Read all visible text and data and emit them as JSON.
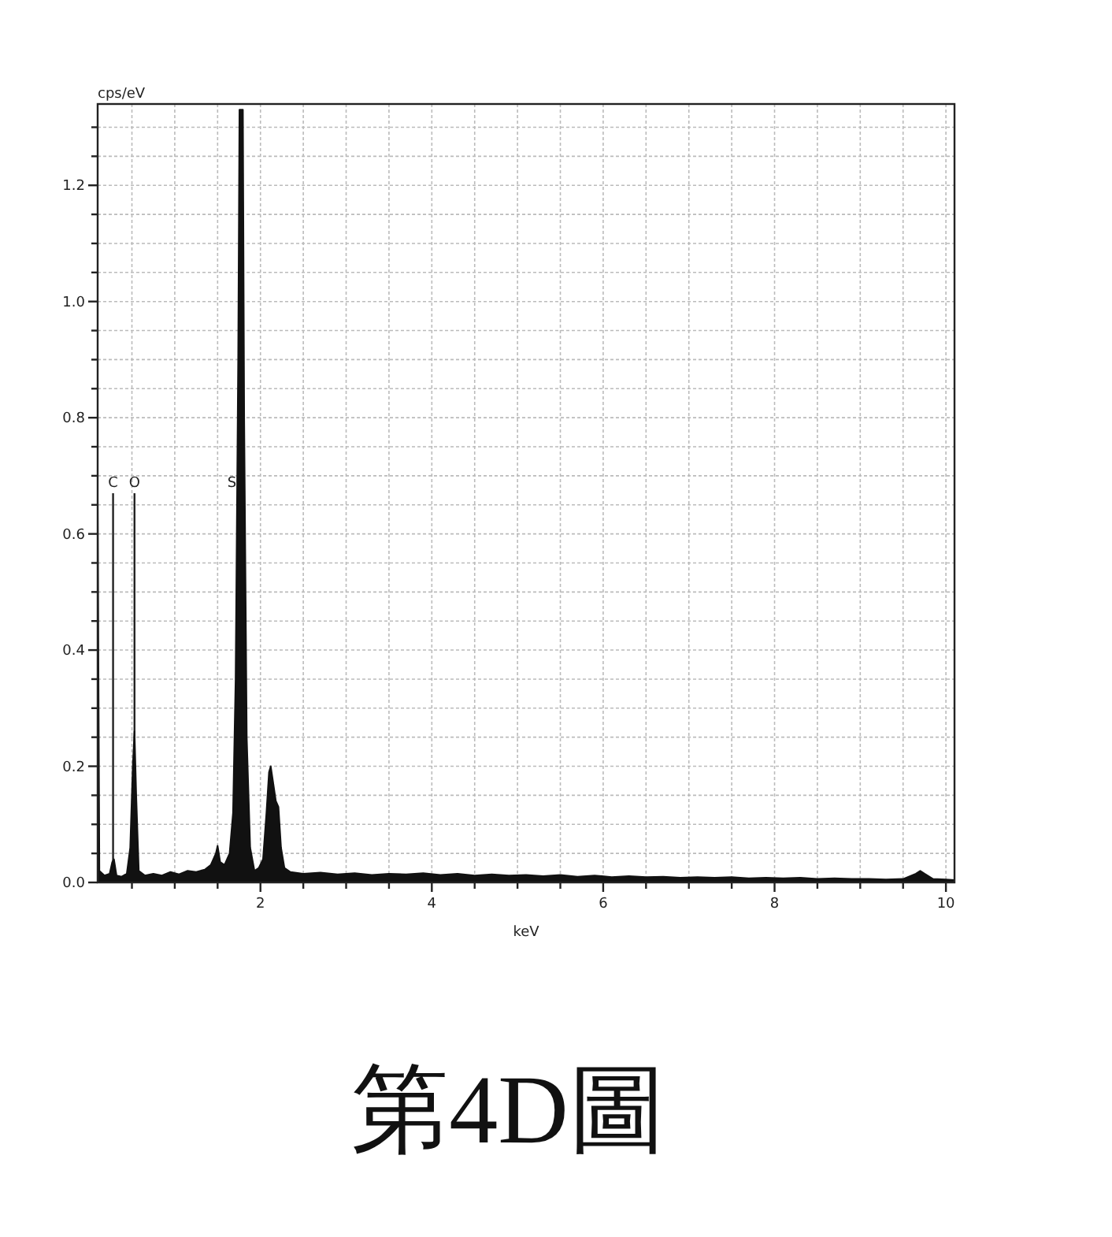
{
  "chart_data": {
    "type": "area",
    "title": "第4D圖",
    "xlabel": "keV",
    "ylabel": "cps/eV",
    "color": "#111111",
    "grid": true,
    "xlim": [
      0.1,
      10.1
    ],
    "ylim": [
      0,
      1.34
    ],
    "xticks": [
      {
        "value": 0.5,
        "label": null
      },
      {
        "value": 1,
        "label": null
      },
      {
        "value": 1.5,
        "label": null
      },
      2,
      {
        "value": 2.5,
        "label": null
      },
      {
        "value": 3,
        "label": null
      },
      {
        "value": 3.5,
        "label": null
      },
      4,
      {
        "value": 4.5,
        "label": null
      },
      {
        "value": 5,
        "label": null
      },
      {
        "value": 5.5,
        "label": null
      },
      6,
      {
        "value": 6.5,
        "label": null
      },
      {
        "value": 7,
        "label": null
      },
      {
        "value": 7.5,
        "label": null
      },
      8,
      {
        "value": 8.5,
        "label": null
      },
      {
        "value": 9,
        "label": null
      },
      {
        "value": 9.5,
        "label": null
      },
      10
    ],
    "yticks": [
      {
        "value": 0,
        "label": "0.0"
      },
      {
        "value": 0.05,
        "label": null
      },
      {
        "value": 0.1,
        "label": null
      },
      {
        "value": 0.15,
        "label": null
      },
      0.2,
      {
        "value": 0.25,
        "label": null
      },
      {
        "value": 0.3,
        "label": null
      },
      {
        "value": 0.35,
        "label": null
      },
      0.4,
      {
        "value": 0.45,
        "label": null
      },
      {
        "value": 0.5,
        "label": null
      },
      {
        "value": 0.55,
        "label": null
      },
      0.6,
      {
        "value": 0.65,
        "label": null
      },
      {
        "value": 0.7,
        "label": null
      },
      {
        "value": 0.75,
        "label": null
      },
      0.8,
      {
        "value": 0.85,
        "label": null
      },
      {
        "value": 0.9,
        "label": null
      },
      {
        "value": 0.95,
        "label": null
      },
      {
        "value": 1,
        "label": "1.0"
      },
      {
        "value": 1.05,
        "label": null
      },
      {
        "value": 1.1,
        "label": null
      },
      {
        "value": 1.15,
        "label": null
      },
      1.2,
      {
        "value": 1.25,
        "label": null
      },
      {
        "value": 1.3,
        "label": null
      }
    ],
    "ref_lines": [
      {
        "axis": "x",
        "value": 0.28,
        "label": "C"
      },
      {
        "axis": "x",
        "value": 0.53,
        "label": "O"
      }
    ],
    "annotations": [
      {
        "text": "S",
        "x": 1.72,
        "y": 0.67
      }
    ],
    "x": [
      0.1,
      0.12,
      0.18,
      0.24,
      0.27,
      0.29,
      0.32,
      0.38,
      0.44,
      0.48,
      0.51,
      0.53,
      0.55,
      0.58,
      0.65,
      0.75,
      0.85,
      0.95,
      1.05,
      1.15,
      1.25,
      1.35,
      1.42,
      1.48,
      1.5,
      1.53,
      1.58,
      1.64,
      1.68,
      1.71,
      1.74,
      1.755,
      1.795,
      1.81,
      1.84,
      1.88,
      1.93,
      1.98,
      2.03,
      2.07,
      2.1,
      2.12,
      2.15,
      2.18,
      2.21,
      2.24,
      2.28,
      2.35,
      2.5,
      2.7,
      2.9,
      3.1,
      3.3,
      3.5,
      3.7,
      3.9,
      4.1,
      4.3,
      4.5,
      4.7,
      4.9,
      5.1,
      5.3,
      5.5,
      5.7,
      5.9,
      6.1,
      6.3,
      6.5,
      6.7,
      6.9,
      7.1,
      7.3,
      7.5,
      7.7,
      7.9,
      8.1,
      8.3,
      8.5,
      8.7,
      8.9,
      9.1,
      9.3,
      9.5,
      9.65,
      9.7,
      9.75,
      9.85,
      10.0,
      10.1
    ],
    "values": [
      0.66,
      0.02,
      0.012,
      0.015,
      0.035,
      0.04,
      0.012,
      0.01,
      0.015,
      0.06,
      0.2,
      0.26,
      0.15,
      0.02,
      0.012,
      0.015,
      0.012,
      0.018,
      0.014,
      0.02,
      0.018,
      0.022,
      0.03,
      0.05,
      0.063,
      0.035,
      0.03,
      0.05,
      0.12,
      0.35,
      0.9,
      1.33,
      1.33,
      0.8,
      0.25,
      0.06,
      0.02,
      0.025,
      0.04,
      0.12,
      0.19,
      0.2,
      0.17,
      0.14,
      0.13,
      0.06,
      0.025,
      0.018,
      0.015,
      0.017,
      0.014,
      0.016,
      0.013,
      0.015,
      0.014,
      0.016,
      0.013,
      0.015,
      0.012,
      0.014,
      0.012,
      0.013,
      0.011,
      0.013,
      0.01,
      0.012,
      0.009,
      0.011,
      0.009,
      0.01,
      0.008,
      0.009,
      0.008,
      0.009,
      0.007,
      0.008,
      0.007,
      0.008,
      0.006,
      0.007,
      0.006,
      0.006,
      0.005,
      0.006,
      0.015,
      0.02,
      0.015,
      0.006,
      0.005,
      0.004
    ]
  }
}
